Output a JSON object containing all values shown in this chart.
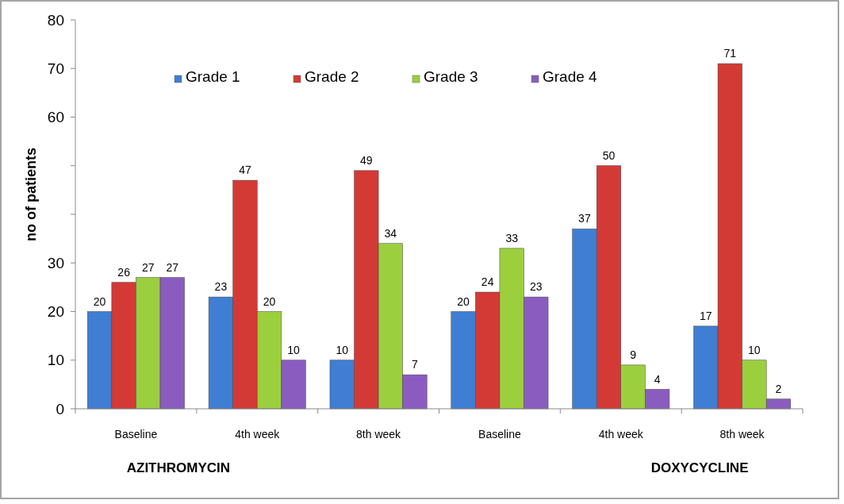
{
  "chart_data": {
    "type": "bar",
    "ylabel": "no of patients",
    "categories": [
      "Baseline",
      "4th week",
      "8th week",
      "Baseline",
      "4th week",
      "8th week"
    ],
    "series": [
      {
        "name": "Grade 1",
        "color": "#3f7ed2",
        "values": [
          20,
          23,
          10,
          20,
          37,
          17
        ]
      },
      {
        "name": "Grade 2",
        "color": "#d33a36",
        "values": [
          26,
          47,
          49,
          24,
          50,
          71
        ]
      },
      {
        "name": "Grade 3",
        "color": "#9ccf3e",
        "values": [
          27,
          20,
          34,
          33,
          9,
          10
        ]
      },
      {
        "name": "Grade 4",
        "color": "#8a5cc0",
        "values": [
          27,
          10,
          7,
          23,
          4,
          2
        ]
      }
    ],
    "ylim": [
      0,
      80
    ],
    "yticks": [
      0,
      10,
      20,
      30,
      {
        "value": 40,
        "label": null
      },
      {
        "value": 50,
        "label": null
      },
      60,
      70,
      80
    ],
    "data_labels": true,
    "legend": "top",
    "grid": false,
    "annotations": [
      "AZITHROMYCIN",
      "DOXYCYCLINE"
    ]
  }
}
